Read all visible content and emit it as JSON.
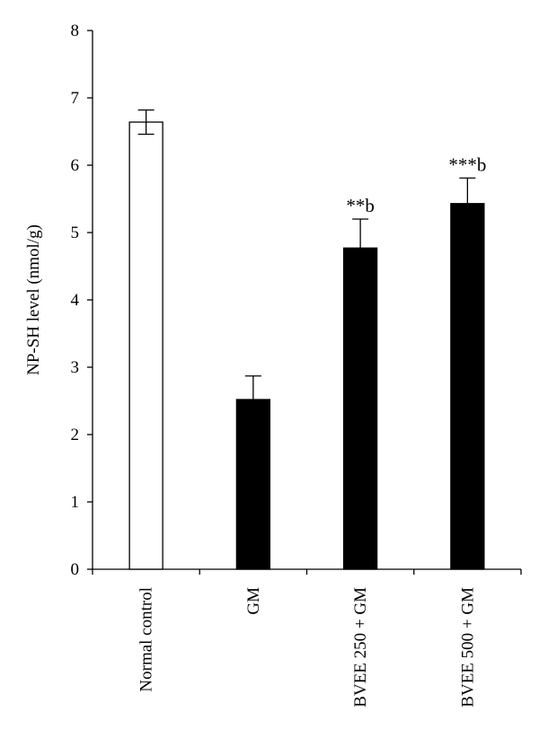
{
  "chart_data": {
    "type": "bar",
    "title": "",
    "xlabel": "",
    "ylabel": "NP-SH level (nmol/g)",
    "ylim": [
      0,
      8
    ],
    "yticks": [
      0,
      1,
      2,
      3,
      4,
      5,
      6,
      7,
      8
    ],
    "categories": [
      "Normal control",
      "GM",
      "BVEE 250 + GM",
      "BVEE 500 + GM"
    ],
    "values": [
      6.64,
      2.52,
      4.77,
      5.43
    ],
    "errors": [
      0.18,
      0.35,
      0.43,
      0.38
    ],
    "bar_fills": [
      "#ffffff",
      "#000000",
      "#000000",
      "#000000"
    ],
    "annotations": [
      "",
      "",
      "**b",
      "***b"
    ],
    "grid": false,
    "legend": "none"
  }
}
